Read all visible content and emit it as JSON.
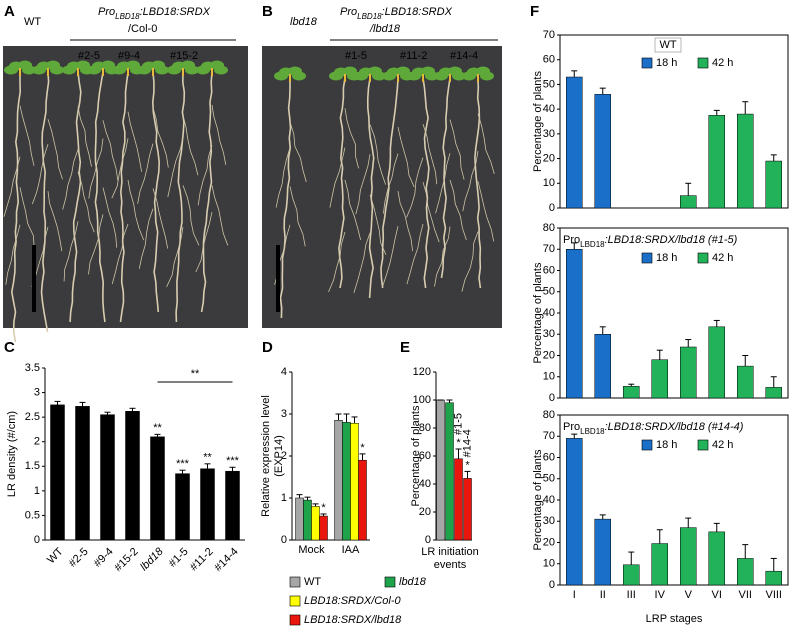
{
  "figure": {
    "panel_labels": [
      "A",
      "B",
      "C",
      "D",
      "E",
      "F"
    ],
    "photo_a": {
      "left_label": "WT",
      "construct_pre": "Pro",
      "construct_sub": "LBD18",
      "construct_post": ":LBD18:SRDX",
      "background": "/Col-0",
      "lines": [
        "#2-5",
        "#9-4",
        "#15-2"
      ]
    },
    "photo_b": {
      "left_label": "lbd18",
      "construct_pre": "Pro",
      "construct_sub": "LBD18",
      "construct_post": ":LBD18:SRDX",
      "background": "/lbd18",
      "lines": [
        "#1-5",
        "#11-2",
        "#14-4"
      ]
    }
  },
  "chart_data": [
    {
      "type": "bar",
      "ylabel": "LR density (#/cm)",
      "color": "#000000",
      "categories": [
        "WT",
        "#2-5",
        "#9-4",
        "#15-2",
        "lbd18",
        "#1-5",
        "#11-2",
        "#14-4"
      ],
      "values": [
        2.75,
        2.72,
        2.55,
        2.62,
        2.1,
        1.35,
        1.45,
        1.4
      ],
      "errors": [
        0.07,
        0.08,
        0.05,
        0.06,
        0.05,
        0.07,
        0.1,
        0.08
      ],
      "annotations": [
        null,
        null,
        null,
        null,
        "**",
        "***",
        "**",
        "***"
      ],
      "bracket_label": "**",
      "ylim": [
        0,
        3.5
      ],
      "yticks": [
        0,
        0.5,
        1,
        1.5,
        2,
        2.5,
        3,
        3.5
      ]
    },
    {
      "type": "bar",
      "ylabel": "Relative expression level",
      "ylabel_2": "(EXP14)",
      "categories": [
        "Mock",
        "IAA"
      ],
      "series": [
        {
          "name": "WT",
          "color": "#a6a6a6",
          "values": [
            1.0,
            2.85
          ],
          "errors": [
            0.08,
            0.15
          ]
        },
        {
          "name": "lbd18",
          "color": "#1fa34a",
          "values": [
            0.95,
            2.8
          ],
          "errors": [
            0.07,
            0.2
          ]
        },
        {
          "name": "LBD18:SRDX/Col-0",
          "color": "#ffff00",
          "values": [
            0.8,
            2.78
          ],
          "errors": [
            0.06,
            0.15
          ]
        },
        {
          "name": "LBD18:SRDX/lbd18",
          "color": "#e8160c",
          "values": [
            0.57,
            1.9
          ],
          "errors": [
            0.05,
            0.15
          ],
          "annotations": [
            "*",
            "*"
          ]
        }
      ],
      "ylim": [
        0,
        4
      ],
      "yticks": [
        0,
        1,
        2,
        3,
        4
      ]
    },
    {
      "type": "bar",
      "ylabel": "Percentage of plants",
      "xlabel": "LR initiation",
      "xlabel_2": "events",
      "values": [
        100,
        98,
        58,
        44
      ],
      "colors": [
        "#a6a6a6",
        "#1fa34a",
        "#e8160c",
        "#e8160c"
      ],
      "errors": [
        0,
        2,
        7,
        5
      ],
      "annotations": [
        null,
        null,
        "*",
        "*"
      ],
      "bar_labels": [
        null,
        null,
        "#1-5",
        "#14-4"
      ],
      "ylim": [
        0,
        120
      ],
      "yticks": [
        0,
        20,
        40,
        60,
        80,
        100,
        120
      ]
    },
    {
      "type": "bar",
      "ylabel": "Percentage of plants",
      "title": "WT",
      "series": [
        {
          "name": "18 h",
          "color": "#1a6fc8",
          "values": [
            53,
            46,
            null,
            null,
            null,
            null,
            null,
            null
          ],
          "errors": [
            2.5,
            2.5,
            null,
            null,
            null,
            null,
            null,
            null
          ]
        },
        {
          "name": "42 h",
          "color": "#21b25a",
          "values": [
            null,
            null,
            null,
            null,
            5,
            37.5,
            38,
            19
          ],
          "errors": [
            null,
            null,
            null,
            null,
            5,
            2,
            5,
            2.5
          ]
        }
      ],
      "ylim": [
        0,
        70
      ],
      "yticks": [
        0,
        10,
        20,
        30,
        40,
        50,
        60,
        70
      ]
    },
    {
      "type": "bar",
      "ylabel": "Percentage of plants",
      "title": {
        "pre": "Pro",
        "sub": "LBD18",
        "post": ":LBD18:SRDX/lbd18 (#1-5)"
      },
      "series": [
        {
          "name": "18 h",
          "color": "#1a6fc8",
          "values": [
            70,
            30,
            null,
            null,
            null,
            null,
            null,
            null
          ],
          "errors": [
            3,
            3.5,
            null,
            null,
            null,
            null,
            null,
            null
          ]
        },
        {
          "name": "42 h",
          "color": "#21b25a",
          "values": [
            null,
            null,
            5.5,
            18,
            24,
            33.5,
            15,
            5
          ],
          "errors": [
            null,
            null,
            1,
            4.5,
            3.5,
            3,
            5,
            5
          ]
        }
      ],
      "ylim": [
        0,
        80
      ],
      "yticks": [
        0,
        10,
        20,
        30,
        40,
        50,
        60,
        70,
        80
      ]
    },
    {
      "type": "bar",
      "ylabel": "Percentage of plants",
      "title": {
        "pre": "Pro",
        "sub": "LBD18",
        "post": ":LBD18:SRDX/lbd18 (#14-4)"
      },
      "categories": [
        "I",
        "II",
        "III",
        "IV",
        "V",
        "VI",
        "VII",
        "VIII"
      ],
      "xlabel": "LRP stages",
      "series": [
        {
          "name": "18 h",
          "color": "#1a6fc8",
          "values": [
            69,
            31,
            null,
            null,
            null,
            null,
            null,
            null
          ],
          "errors": [
            2,
            2,
            null,
            null,
            null,
            null,
            null,
            null
          ]
        },
        {
          "name": "42 h",
          "color": "#21b25a",
          "values": [
            null,
            null,
            9.5,
            19.5,
            27,
            25,
            12.5,
            6.5
          ],
          "errors": [
            null,
            null,
            6,
            6.5,
            4.5,
            4,
            6.5,
            6
          ]
        }
      ],
      "ylim": [
        0,
        80
      ],
      "yticks": [
        0,
        10,
        20,
        30,
        40,
        50,
        60,
        70,
        80
      ]
    }
  ]
}
